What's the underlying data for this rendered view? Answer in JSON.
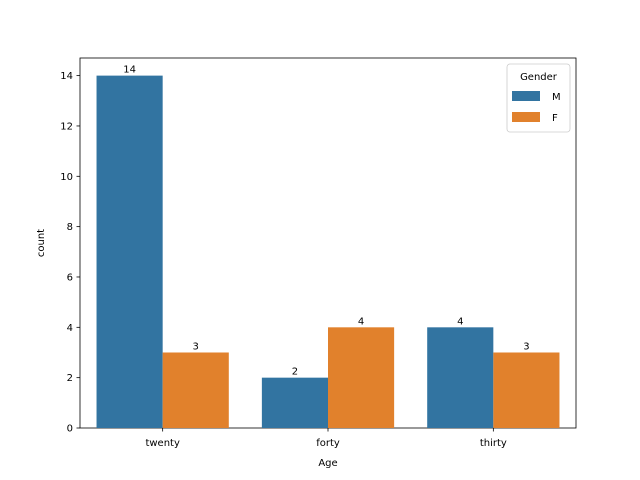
{
  "chart_data": {
    "type": "bar",
    "title": "",
    "xlabel": "Age",
    "ylabel": "count",
    "categories": [
      "twenty",
      "forty",
      "thirty"
    ],
    "series": [
      {
        "name": "M",
        "values": [
          14,
          2,
          4
        ],
        "color": "#3274a1"
      },
      {
        "name": "F",
        "values": [
          3,
          4,
          3
        ],
        "color": "#e1812c"
      }
    ],
    "ylim": [
      0,
      14.7
    ],
    "yticks": [
      0,
      2,
      4,
      6,
      8,
      10,
      12,
      14
    ],
    "legend": {
      "title": "Gender",
      "placement": "top-right"
    },
    "grid": false,
    "bar_labels": true
  }
}
